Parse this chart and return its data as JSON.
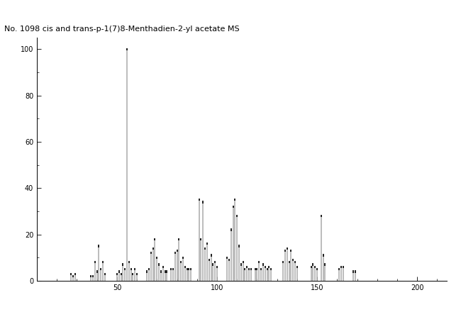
{
  "title": "No. 1098 cis and trans-p-1(7)8-Menthadien-2-yl acetate MS",
  "title_fontsize": 8,
  "xlim": [
    10,
    215
  ],
  "ylim": [
    0,
    105
  ],
  "xticks": [
    50,
    100,
    150,
    200
  ],
  "yticks": [
    0,
    20,
    40,
    60,
    80,
    100
  ],
  "background_color": "#ffffff",
  "bar_color": "#b0b0b0",
  "dark_bar_color": "#000000",
  "peaks": [
    [
      27,
      3
    ],
    [
      28,
      2
    ],
    [
      29,
      3
    ],
    [
      37,
      2
    ],
    [
      38,
      2
    ],
    [
      39,
      8
    ],
    [
      40,
      4
    ],
    [
      41,
      15
    ],
    [
      42,
      5
    ],
    [
      43,
      8
    ],
    [
      44,
      3
    ],
    [
      50,
      3
    ],
    [
      51,
      4
    ],
    [
      52,
      3
    ],
    [
      53,
      7
    ],
    [
      54,
      5
    ],
    [
      55,
      100
    ],
    [
      56,
      8
    ],
    [
      57,
      5
    ],
    [
      58,
      3
    ],
    [
      59,
      5
    ],
    [
      60,
      3
    ],
    [
      65,
      4
    ],
    [
      66,
      5
    ],
    [
      67,
      12
    ],
    [
      68,
      14
    ],
    [
      69,
      18
    ],
    [
      70,
      10
    ],
    [
      71,
      7
    ],
    [
      72,
      4
    ],
    [
      73,
      6
    ],
    [
      74,
      4
    ],
    [
      75,
      4
    ],
    [
      77,
      5
    ],
    [
      78,
      5
    ],
    [
      79,
      12
    ],
    [
      80,
      13
    ],
    [
      81,
      18
    ],
    [
      82,
      8
    ],
    [
      83,
      10
    ],
    [
      84,
      6
    ],
    [
      85,
      5
    ],
    [
      86,
      5
    ],
    [
      87,
      5
    ],
    [
      91,
      35
    ],
    [
      92,
      18
    ],
    [
      93,
      34
    ],
    [
      94,
      14
    ],
    [
      95,
      16
    ],
    [
      96,
      9
    ],
    [
      97,
      11
    ],
    [
      98,
      7
    ],
    [
      99,
      8
    ],
    [
      100,
      6
    ],
    [
      105,
      10
    ],
    [
      106,
      9
    ],
    [
      107,
      22
    ],
    [
      108,
      32
    ],
    [
      109,
      35
    ],
    [
      110,
      28
    ],
    [
      111,
      15
    ],
    [
      112,
      7
    ],
    [
      113,
      8
    ],
    [
      114,
      5
    ],
    [
      115,
      6
    ],
    [
      116,
      5
    ],
    [
      117,
      5
    ],
    [
      119,
      5
    ],
    [
      120,
      5
    ],
    [
      121,
      8
    ],
    [
      122,
      5
    ],
    [
      123,
      7
    ],
    [
      124,
      6
    ],
    [
      125,
      5
    ],
    [
      126,
      6
    ],
    [
      127,
      5
    ],
    [
      133,
      8
    ],
    [
      134,
      13
    ],
    [
      135,
      14
    ],
    [
      136,
      8
    ],
    [
      137,
      13
    ],
    [
      138,
      9
    ],
    [
      139,
      8
    ],
    [
      140,
      6
    ],
    [
      147,
      6
    ],
    [
      148,
      7
    ],
    [
      149,
      6
    ],
    [
      150,
      5
    ],
    [
      152,
      28
    ],
    [
      153,
      11
    ],
    [
      154,
      7
    ],
    [
      161,
      5
    ],
    [
      162,
      6
    ],
    [
      163,
      6
    ],
    [
      168,
      4
    ],
    [
      169,
      4
    ]
  ]
}
